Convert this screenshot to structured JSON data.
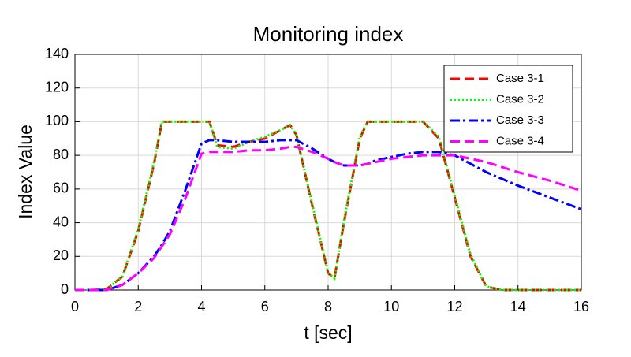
{
  "chart_data": {
    "type": "line",
    "title": "Monitoring index",
    "xlabel": "t [sec]",
    "ylabel": "Index Value",
    "x": [
      0,
      0.5,
      1,
      1.5,
      2,
      2.5,
      2.75,
      3,
      3.5,
      4,
      4.25,
      4.5,
      5,
      5.5,
      6,
      6.5,
      6.8,
      7,
      7.5,
      8,
      8.2,
      8.5,
      9,
      9.25,
      9.5,
      10,
      10.5,
      11,
      11.5,
      12,
      12.5,
      13,
      13.5,
      14,
      15,
      16
    ],
    "series": [
      {
        "name": "Case 3-1",
        "color": "#ff0000",
        "dash": "dashed",
        "values": [
          0,
          0,
          0.5,
          8,
          35,
          75,
          100,
          100,
          100,
          100,
          100,
          86,
          85,
          88,
          90,
          95,
          98,
          92,
          50,
          10,
          7,
          40,
          90,
          100,
          100,
          100,
          100,
          100,
          90,
          55,
          20,
          2,
          0,
          0,
          0,
          0
        ]
      },
      {
        "name": "Case 3-2",
        "color": "#00ff00",
        "dash": "dotted",
        "values": [
          0,
          0,
          0.5,
          8,
          36,
          76,
          100,
          100,
          100,
          100,
          100,
          85,
          84,
          88,
          91,
          95,
          98,
          92,
          51,
          10,
          7,
          41,
          91,
          100,
          100,
          100,
          100,
          100,
          91,
          56,
          21,
          2,
          0,
          0,
          0,
          0
        ]
      },
      {
        "name": "Case 3-3",
        "color": "#0000ff",
        "dash": "dashdot",
        "values": [
          0,
          0,
          0,
          3,
          10,
          20,
          27,
          35,
          60,
          87,
          89,
          89,
          88,
          88,
          88,
          89,
          89,
          89,
          84,
          78,
          76,
          74,
          74,
          75,
          77,
          79,
          81,
          82,
          82,
          80,
          75,
          70,
          66,
          62,
          55,
          48
        ]
      },
      {
        "name": "Case 3-4",
        "color": "#ff00ff",
        "dash": "dashed",
        "values": [
          0,
          0,
          0,
          3,
          10,
          19,
          26,
          33,
          55,
          81,
          82,
          82,
          82,
          83,
          83,
          84,
          85,
          85,
          82,
          78,
          76,
          74,
          74,
          75,
          76,
          78,
          79,
          80,
          80,
          80,
          78,
          76,
          73,
          70,
          65,
          59
        ]
      }
    ],
    "xlim": [
      0,
      16
    ],
    "xticks": [
      0,
      2,
      4,
      6,
      8,
      10,
      12,
      14,
      16
    ],
    "ylim": [
      0,
      140
    ],
    "yticks": [
      0,
      20,
      40,
      60,
      80,
      100,
      120,
      140
    ],
    "grid": true,
    "legend": "upper right"
  }
}
